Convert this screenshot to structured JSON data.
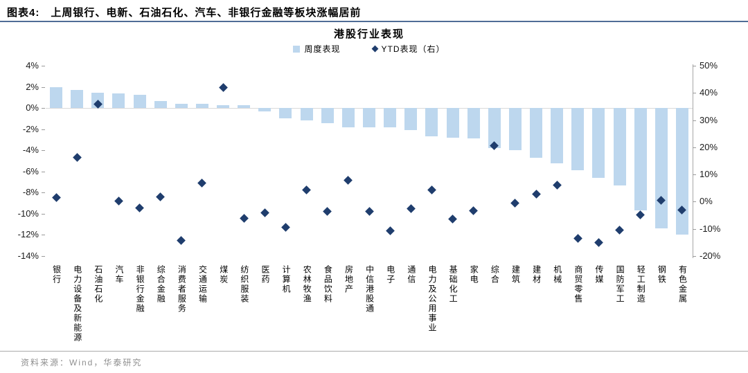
{
  "header": {
    "tag": "图表4:",
    "title": "上周银行、电新、石油石化、汽车、非银行金融等板块涨幅居前"
  },
  "chart_data": {
    "type": "bar",
    "title": "港股行业表现",
    "legend": [
      {
        "label": "周度表现",
        "marker": "bar-square"
      },
      {
        "label": "YTD表现（右）",
        "marker": "diamond"
      }
    ],
    "categories": [
      "银行",
      "电力设备及新能源",
      "石油石化",
      "汽车",
      "非银行金融",
      "综合金融",
      "消费者服务",
      "交通运输",
      "煤炭",
      "纺织服装",
      "医药",
      "计算机",
      "农林牧渔",
      "食品饮料",
      "房地产",
      "中信港股通",
      "电子",
      "通信",
      "电力及公用事业",
      "基础化工",
      "家电",
      "综合",
      "建筑",
      "建材",
      "机械",
      "商贸零售",
      "传媒",
      "国防军工",
      "轻工制造",
      "钢铁",
      "有色金属"
    ],
    "series": [
      {
        "name": "周度表现",
        "type": "bar",
        "axis": "left",
        "values": [
          2.0,
          1.7,
          1.45,
          1.4,
          1.25,
          0.65,
          0.4,
          0.4,
          0.3,
          0.25,
          -0.3,
          -1.0,
          -1.2,
          -1.45,
          -1.8,
          -1.85,
          -1.85,
          -2.1,
          -2.65,
          -2.8,
          -2.85,
          -3.8,
          -4.0,
          -4.7,
          -5.2,
          -5.9,
          -6.6,
          -7.3,
          -9.7,
          -11.4,
          -12.0
        ]
      },
      {
        "name": "YTD表现（右）",
        "type": "scatter",
        "axis": "right",
        "values": [
          1.6,
          16.3,
          36.0,
          0.3,
          -2.3,
          1.7,
          -14.2,
          6.9,
          42.0,
          -6.0,
          -4.2,
          -9.5,
          4.2,
          -3.6,
          7.9,
          -3.5,
          -10.6,
          -2.5,
          4.4,
          -6.5,
          -3.2,
          20.5,
          -0.5,
          2.9,
          6.0,
          -13.5,
          -15.0,
          -10.4,
          -4.9,
          0.6,
          -3.1
        ]
      }
    ],
    "left_axis": {
      "min": -14,
      "max": 4,
      "ticks": [
        {
          "value": 4,
          "label": "4%"
        },
        {
          "value": 2,
          "label": "2%"
        },
        {
          "value": 0,
          "label": "0%"
        },
        {
          "value": -2,
          "label": "-2%"
        },
        {
          "value": -4,
          "label": "-4%"
        },
        {
          "value": -6,
          "label": "-6%"
        },
        {
          "value": -8,
          "label": "-8%"
        },
        {
          "value": -10,
          "label": "-10%"
        },
        {
          "value": -12,
          "label": "-12%"
        },
        {
          "value": -14,
          "label": "-14%"
        }
      ]
    },
    "right_axis": {
      "min": -20,
      "max": 50,
      "ticks": [
        {
          "value": 50,
          "label": "50%"
        },
        {
          "value": 40,
          "label": "40%"
        },
        {
          "value": 30,
          "label": "30%"
        },
        {
          "value": 20,
          "label": "20%"
        },
        {
          "value": 10,
          "label": "10%"
        },
        {
          "value": 0,
          "label": "0%"
        },
        {
          "value": -10,
          "label": "-10%"
        },
        {
          "value": -20,
          "label": "-20%"
        }
      ]
    },
    "grid": "zero-line-only",
    "legend_position": "top-center",
    "colors": {
      "bar": "#BDD7EE",
      "diamond": "#1F3D6D",
      "zero_line": "#D9D9D9",
      "accent_rule": "#4F6D96"
    }
  },
  "footer": {
    "source": "资料来源：Wind，华泰研究"
  }
}
